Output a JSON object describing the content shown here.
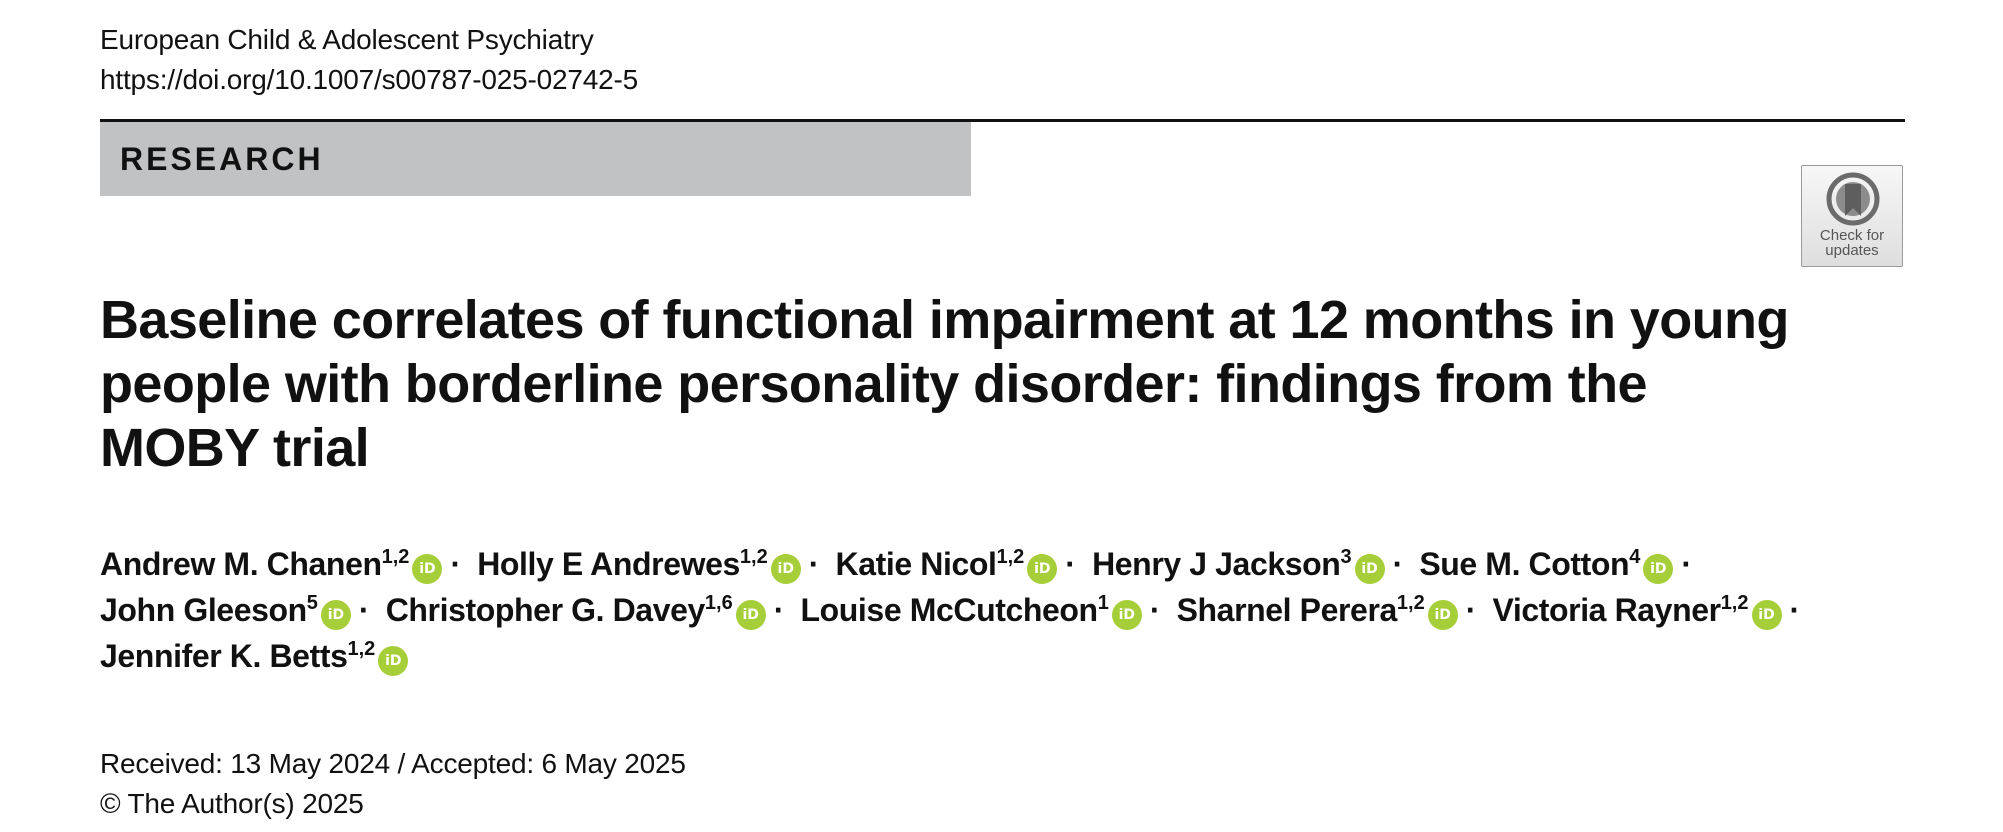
{
  "journal": {
    "name": "European Child & Adolescent Psychiatry",
    "doi": "https://doi.org/10.1007/s00787-025-02742-5"
  },
  "section_label": "RESEARCH",
  "check_for_updates": {
    "line1": "Check for",
    "line2": "updates",
    "icon": "check-for-updates-bookmark-icon"
  },
  "title": "Baseline correlates of functional impairment at 12 months in young people with borderline personality disorder: findings from the MOBY trial",
  "authors": [
    {
      "name": "Andrew M. Chanen",
      "aff": "1,2",
      "orcid_label": "iD"
    },
    {
      "name": "Holly E Andrewes",
      "aff": "1,2",
      "orcid_label": "iD"
    },
    {
      "name": "Katie Nicol",
      "aff": "1,2",
      "orcid_label": "iD"
    },
    {
      "name": "Henry J Jackson",
      "aff": "3",
      "orcid_label": "iD"
    },
    {
      "name": "Sue M. Cotton",
      "aff": "4",
      "orcid_label": "iD"
    },
    {
      "name": "John Gleeson",
      "aff": "5",
      "orcid_label": "iD"
    },
    {
      "name": "Christopher G. Davey",
      "aff": "1,6",
      "orcid_label": "iD"
    },
    {
      "name": "Louise McCutcheon",
      "aff": "1",
      "orcid_label": "iD"
    },
    {
      "name": "Sharnel Perera",
      "aff": "1,2",
      "orcid_label": "iD"
    },
    {
      "name": "Victoria Rayner",
      "aff": "1,2",
      "orcid_label": "iD"
    },
    {
      "name": "Jennifer K. Betts",
      "aff": "1,2",
      "orcid_label": "iD"
    }
  ],
  "author_separator": "·",
  "dates": {
    "received_accepted": "Received: 13 May 2024 / Accepted: 6 May 2025",
    "copyright": "© The Author(s) 2025"
  },
  "colors": {
    "section_band": "#c1c2c4",
    "orcid_green": "#a6ce39",
    "rule": "#111111"
  }
}
